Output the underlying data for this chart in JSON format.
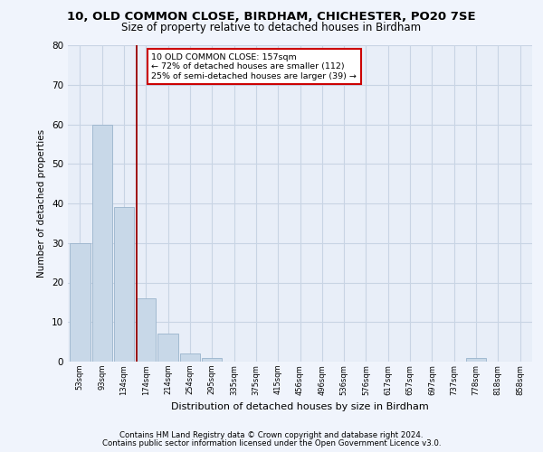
{
  "title1": "10, OLD COMMON CLOSE, BIRDHAM, CHICHESTER, PO20 7SE",
  "title2": "Size of property relative to detached houses in Birdham",
  "xlabel": "Distribution of detached houses by size in Birdham",
  "ylabel": "Number of detached properties",
  "bins": [
    "53sqm",
    "93sqm",
    "134sqm",
    "174sqm",
    "214sqm",
    "254sqm",
    "295sqm",
    "335sqm",
    "375sqm",
    "415sqm",
    "456sqm",
    "496sqm",
    "536sqm",
    "576sqm",
    "617sqm",
    "657sqm",
    "697sqm",
    "737sqm",
    "778sqm",
    "818sqm",
    "858sqm"
  ],
  "values": [
    30,
    60,
    39,
    16,
    7,
    2,
    1,
    0,
    0,
    0,
    0,
    0,
    0,
    0,
    0,
    0,
    0,
    0,
    1,
    0,
    0
  ],
  "bar_color": "#c8d8e8",
  "bar_edge_color": "#9ab4cc",
  "grid_color": "#c8d4e4",
  "vline_x_index": 2.57,
  "vline_color": "#990000",
  "annotation_text": "10 OLD COMMON CLOSE: 157sqm\n← 72% of detached houses are smaller (112)\n25% of semi-detached houses are larger (39) →",
  "annotation_box_color": "#ffffff",
  "annotation_box_edge": "#cc0000",
  "ylim": [
    0,
    80
  ],
  "yticks": [
    0,
    10,
    20,
    30,
    40,
    50,
    60,
    70,
    80
  ],
  "footer_line1": "Contains HM Land Registry data © Crown copyright and database right 2024.",
  "footer_line2": "Contains public sector information licensed under the Open Government Licence v3.0.",
  "bg_color": "#e8eef8",
  "fig_bg_color": "#f0f4fc"
}
